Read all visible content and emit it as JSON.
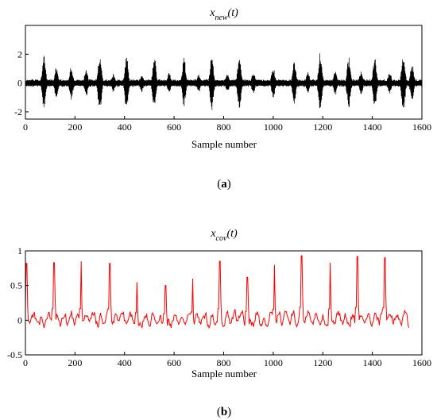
{
  "chart_data": [
    {
      "type": "line",
      "panel_label": "a",
      "title_main": "x",
      "title_sub": "new",
      "title_arg": "(t)",
      "xlabel": "Sample number",
      "ylabel": "",
      "xlim": [
        0,
        1600
      ],
      "ylim": [
        -2.5,
        4
      ],
      "xticks": [
        0,
        200,
        400,
        600,
        800,
        1000,
        1200,
        1400,
        1600
      ],
      "yticks": [
        -2,
        0,
        2
      ],
      "color": "#000000",
      "grid": false,
      "baseline_amplitude": 0.28,
      "bursts": [
        {
          "x": 75,
          "amp": 2.0
        },
        {
          "x": 125,
          "amp": 1.2
        },
        {
          "x": 185,
          "amp": 1.3
        },
        {
          "x": 245,
          "amp": 1.1
        },
        {
          "x": 300,
          "amp": 2.3
        },
        {
          "x": 355,
          "amp": 0.7
        },
        {
          "x": 408,
          "amp": 2.2
        },
        {
          "x": 470,
          "amp": 0.7
        },
        {
          "x": 520,
          "amp": 2.0
        },
        {
          "x": 580,
          "amp": 0.8
        },
        {
          "x": 640,
          "amp": 1.9
        },
        {
          "x": 700,
          "amp": 0.7
        },
        {
          "x": 752,
          "amp": 2.2
        },
        {
          "x": 815,
          "amp": 0.7
        },
        {
          "x": 863,
          "amp": 2.1
        },
        {
          "x": 920,
          "amp": 0.8
        },
        {
          "x": 1000,
          "amp": 1.2
        },
        {
          "x": 1085,
          "amp": 1.6
        },
        {
          "x": 1140,
          "amp": 0.8
        },
        {
          "x": 1190,
          "amp": 2.3
        },
        {
          "x": 1250,
          "amp": 1.0
        },
        {
          "x": 1305,
          "amp": 2.0
        },
        {
          "x": 1355,
          "amp": 0.9
        },
        {
          "x": 1410,
          "amp": 2.1
        },
        {
          "x": 1470,
          "amp": 0.9
        },
        {
          "x": 1525,
          "amp": 2.3
        },
        {
          "x": 1560,
          "amp": 1.5
        }
      ]
    },
    {
      "type": "line",
      "panel_label": "b",
      "title_main": "x",
      "title_sub": "cov",
      "title_arg": "(t)",
      "xlabel": "Sample number",
      "ylabel": "",
      "xlim": [
        0,
        1600
      ],
      "ylim": [
        -0.5,
        1
      ],
      "xticks": [
        0,
        200,
        400,
        600,
        800,
        1000,
        1200,
        1400,
        1600
      ],
      "yticks": [
        -0.5,
        0,
        0.5,
        1
      ],
      "color": "#ff0000",
      "grid": false,
      "n_points": 1550,
      "peaks": [
        {
          "x": 5,
          "y": 0.82
        },
        {
          "x": 115,
          "y": 0.83
        },
        {
          "x": 225,
          "y": 0.85
        },
        {
          "x": 340,
          "y": 0.82
        },
        {
          "x": 450,
          "y": 0.55
        },
        {
          "x": 565,
          "y": 0.5
        },
        {
          "x": 675,
          "y": 0.6
        },
        {
          "x": 785,
          "y": 0.85
        },
        {
          "x": 895,
          "y": 0.62
        },
        {
          "x": 1005,
          "y": 0.8
        },
        {
          "x": 1115,
          "y": 0.93
        },
        {
          "x": 1230,
          "y": 0.83
        },
        {
          "x": 1340,
          "y": 0.92
        },
        {
          "x": 1450,
          "y": 0.9
        }
      ]
    }
  ]
}
